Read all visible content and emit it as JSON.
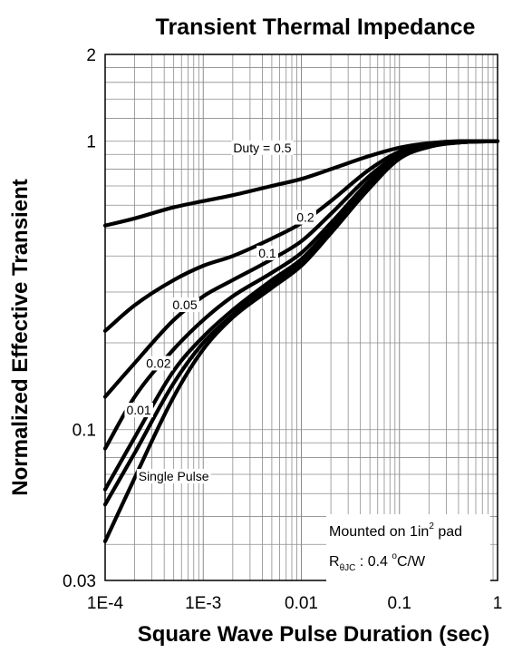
{
  "chart_data": {
    "type": "line",
    "title": "Transient Thermal Impedance",
    "xlabel": "Square Wave Pulse Duration (sec)",
    "ylabel": "Normalized Effective Transient",
    "xscale": "log",
    "yscale": "log",
    "xlim": [
      0.0001,
      1
    ],
    "ylim": [
      0.03,
      2
    ],
    "grid": true,
    "x_ticks": [
      {
        "value": 0.0001,
        "label": "1E-4"
      },
      {
        "value": 0.001,
        "label": "1E-3"
      },
      {
        "value": 0.01,
        "label": "0.01"
      },
      {
        "value": 0.1,
        "label": "0.1"
      },
      {
        "value": 1,
        "label": "1"
      }
    ],
    "y_ticks": [
      {
        "value": 0.03,
        "label": "0.03"
      },
      {
        "value": 0.1,
        "label": "0.1"
      },
      {
        "value": 1,
        "label": "1"
      },
      {
        "value": 2,
        "label": "2"
      }
    ],
    "series": [
      {
        "name": "Duty = 0.5",
        "label_at": [
          0.004,
          0.95
        ],
        "points": [
          [
            0.0001,
            0.51
          ],
          [
            0.0002,
            0.54
          ],
          [
            0.0005,
            0.59
          ],
          [
            0.001,
            0.62
          ],
          [
            0.002,
            0.65
          ],
          [
            0.005,
            0.7
          ],
          [
            0.01,
            0.74
          ],
          [
            0.02,
            0.8
          ],
          [
            0.05,
            0.89
          ],
          [
            0.1,
            0.95
          ],
          [
            0.2,
            0.985
          ],
          [
            0.5,
            1.0
          ],
          [
            1,
            1.0
          ]
        ]
      },
      {
        "name": "0.2",
        "label_at": [
          0.011,
          0.545
        ],
        "points": [
          [
            0.0001,
            0.22
          ],
          [
            0.0002,
            0.27
          ],
          [
            0.0005,
            0.33
          ],
          [
            0.001,
            0.37
          ],
          [
            0.002,
            0.4
          ],
          [
            0.005,
            0.46
          ],
          [
            0.01,
            0.52
          ],
          [
            0.02,
            0.62
          ],
          [
            0.05,
            0.8
          ],
          [
            0.1,
            0.92
          ],
          [
            0.2,
            0.98
          ],
          [
            0.5,
            1.0
          ],
          [
            1,
            1.0
          ]
        ]
      },
      {
        "name": "0.1",
        "label_at": [
          0.0045,
          0.41
        ],
        "points": [
          [
            0.0001,
            0.13
          ],
          [
            0.0002,
            0.17
          ],
          [
            0.0005,
            0.24
          ],
          [
            0.001,
            0.29
          ],
          [
            0.002,
            0.33
          ],
          [
            0.005,
            0.39
          ],
          [
            0.01,
            0.45
          ],
          [
            0.02,
            0.56
          ],
          [
            0.05,
            0.76
          ],
          [
            0.1,
            0.9
          ],
          [
            0.2,
            0.97
          ],
          [
            0.5,
            1.0
          ],
          [
            1,
            1.0
          ]
        ]
      },
      {
        "name": "0.05",
        "label_at": [
          0.00065,
          0.271
        ],
        "points": [
          [
            0.0001,
            0.086
          ],
          [
            0.0002,
            0.13
          ],
          [
            0.0005,
            0.19
          ],
          [
            0.001,
            0.24
          ],
          [
            0.002,
            0.29
          ],
          [
            0.005,
            0.35
          ],
          [
            0.01,
            0.41
          ],
          [
            0.02,
            0.52
          ],
          [
            0.05,
            0.73
          ],
          [
            0.1,
            0.89
          ],
          [
            0.2,
            0.965
          ],
          [
            0.5,
            0.995
          ],
          [
            1,
            1.0
          ]
        ]
      },
      {
        "name": "0.02",
        "label_at": [
          0.00035,
          0.17
        ],
        "points": [
          [
            0.0001,
            0.062
          ],
          [
            0.0002,
            0.094
          ],
          [
            0.0005,
            0.16
          ],
          [
            0.001,
            0.21
          ],
          [
            0.002,
            0.26
          ],
          [
            0.005,
            0.33
          ],
          [
            0.01,
            0.39
          ],
          [
            0.02,
            0.5
          ],
          [
            0.05,
            0.71
          ],
          [
            0.1,
            0.88
          ],
          [
            0.2,
            0.96
          ],
          [
            0.5,
            0.995
          ],
          [
            1,
            1.0
          ]
        ]
      },
      {
        "name": "0.01",
        "label_at": [
          0.00022,
          0.117
        ],
        "points": [
          [
            0.0001,
            0.055
          ],
          [
            0.0002,
            0.083
          ],
          [
            0.0005,
            0.145
          ],
          [
            0.001,
            0.2
          ],
          [
            0.002,
            0.25
          ],
          [
            0.005,
            0.32
          ],
          [
            0.01,
            0.38
          ],
          [
            0.02,
            0.49
          ],
          [
            0.05,
            0.7
          ],
          [
            0.1,
            0.875
          ],
          [
            0.2,
            0.958
          ],
          [
            0.5,
            0.995
          ],
          [
            1,
            1.0
          ]
        ]
      },
      {
        "name": "Single Pulse",
        "label_at": [
          0.0005,
          0.069
        ],
        "points": [
          [
            0.0001,
            0.041
          ],
          [
            0.0002,
            0.068
          ],
          [
            0.0005,
            0.13
          ],
          [
            0.001,
            0.19
          ],
          [
            0.002,
            0.245
          ],
          [
            0.005,
            0.31
          ],
          [
            0.01,
            0.37
          ],
          [
            0.02,
            0.48
          ],
          [
            0.05,
            0.69
          ],
          [
            0.1,
            0.87
          ],
          [
            0.2,
            0.955
          ],
          [
            0.5,
            0.995
          ],
          [
            1,
            1.0
          ]
        ]
      }
    ],
    "annotations": {
      "mounted_text": "Mounted on 1in",
      "mounted_sup": "2",
      "mounted_suffix": " pad",
      "r_main": "R",
      "r_sub": "θJC",
      "r_value": " : 0.4 ",
      "r_deg": "o",
      "r_unit": "C/W"
    }
  }
}
